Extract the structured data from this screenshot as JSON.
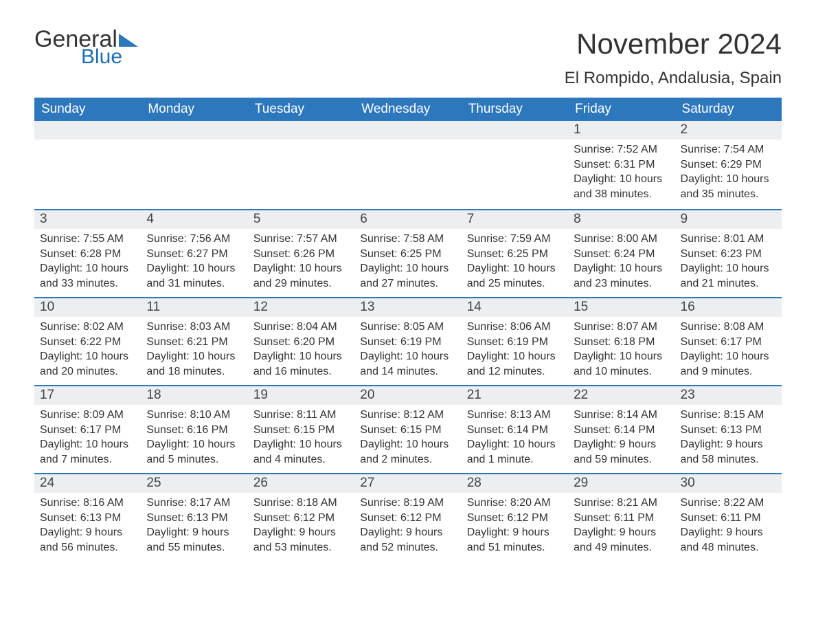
{
  "logo": {
    "line1": "General",
    "line2": "Blue"
  },
  "title": "November 2024",
  "location": "El Rompido, Andalusia, Spain",
  "colors": {
    "header_bg": "#2d77bd",
    "header_text": "#ffffff",
    "daynum_bg": "#eceef0",
    "border": "#2d77bd",
    "text": "#333333",
    "logo_blue": "#1a6fb5"
  },
  "daysOfWeek": [
    "Sunday",
    "Monday",
    "Tuesday",
    "Wednesday",
    "Thursday",
    "Friday",
    "Saturday"
  ],
  "weeks": [
    [
      null,
      null,
      null,
      null,
      null,
      {
        "n": "1",
        "sunrise": "7:52 AM",
        "sunset": "6:31 PM",
        "daylight": "10 hours and 38 minutes."
      },
      {
        "n": "2",
        "sunrise": "7:54 AM",
        "sunset": "6:29 PM",
        "daylight": "10 hours and 35 minutes."
      }
    ],
    [
      {
        "n": "3",
        "sunrise": "7:55 AM",
        "sunset": "6:28 PM",
        "daylight": "10 hours and 33 minutes."
      },
      {
        "n": "4",
        "sunrise": "7:56 AM",
        "sunset": "6:27 PM",
        "daylight": "10 hours and 31 minutes."
      },
      {
        "n": "5",
        "sunrise": "7:57 AM",
        "sunset": "6:26 PM",
        "daylight": "10 hours and 29 minutes."
      },
      {
        "n": "6",
        "sunrise": "7:58 AM",
        "sunset": "6:25 PM",
        "daylight": "10 hours and 27 minutes."
      },
      {
        "n": "7",
        "sunrise": "7:59 AM",
        "sunset": "6:25 PM",
        "daylight": "10 hours and 25 minutes."
      },
      {
        "n": "8",
        "sunrise": "8:00 AM",
        "sunset": "6:24 PM",
        "daylight": "10 hours and 23 minutes."
      },
      {
        "n": "9",
        "sunrise": "8:01 AM",
        "sunset": "6:23 PM",
        "daylight": "10 hours and 21 minutes."
      }
    ],
    [
      {
        "n": "10",
        "sunrise": "8:02 AM",
        "sunset": "6:22 PM",
        "daylight": "10 hours and 20 minutes."
      },
      {
        "n": "11",
        "sunrise": "8:03 AM",
        "sunset": "6:21 PM",
        "daylight": "10 hours and 18 minutes."
      },
      {
        "n": "12",
        "sunrise": "8:04 AM",
        "sunset": "6:20 PM",
        "daylight": "10 hours and 16 minutes."
      },
      {
        "n": "13",
        "sunrise": "8:05 AM",
        "sunset": "6:19 PM",
        "daylight": "10 hours and 14 minutes."
      },
      {
        "n": "14",
        "sunrise": "8:06 AM",
        "sunset": "6:19 PM",
        "daylight": "10 hours and 12 minutes."
      },
      {
        "n": "15",
        "sunrise": "8:07 AM",
        "sunset": "6:18 PM",
        "daylight": "10 hours and 10 minutes."
      },
      {
        "n": "16",
        "sunrise": "8:08 AM",
        "sunset": "6:17 PM",
        "daylight": "10 hours and 9 minutes."
      }
    ],
    [
      {
        "n": "17",
        "sunrise": "8:09 AM",
        "sunset": "6:17 PM",
        "daylight": "10 hours and 7 minutes."
      },
      {
        "n": "18",
        "sunrise": "8:10 AM",
        "sunset": "6:16 PM",
        "daylight": "10 hours and 5 minutes."
      },
      {
        "n": "19",
        "sunrise": "8:11 AM",
        "sunset": "6:15 PM",
        "daylight": "10 hours and 4 minutes."
      },
      {
        "n": "20",
        "sunrise": "8:12 AM",
        "sunset": "6:15 PM",
        "daylight": "10 hours and 2 minutes."
      },
      {
        "n": "21",
        "sunrise": "8:13 AM",
        "sunset": "6:14 PM",
        "daylight": "10 hours and 1 minute."
      },
      {
        "n": "22",
        "sunrise": "8:14 AM",
        "sunset": "6:14 PM",
        "daylight": "9 hours and 59 minutes."
      },
      {
        "n": "23",
        "sunrise": "8:15 AM",
        "sunset": "6:13 PM",
        "daylight": "9 hours and 58 minutes."
      }
    ],
    [
      {
        "n": "24",
        "sunrise": "8:16 AM",
        "sunset": "6:13 PM",
        "daylight": "9 hours and 56 minutes."
      },
      {
        "n": "25",
        "sunrise": "8:17 AM",
        "sunset": "6:13 PM",
        "daylight": "9 hours and 55 minutes."
      },
      {
        "n": "26",
        "sunrise": "8:18 AM",
        "sunset": "6:12 PM",
        "daylight": "9 hours and 53 minutes."
      },
      {
        "n": "27",
        "sunrise": "8:19 AM",
        "sunset": "6:12 PM",
        "daylight": "9 hours and 52 minutes."
      },
      {
        "n": "28",
        "sunrise": "8:20 AM",
        "sunset": "6:12 PM",
        "daylight": "9 hours and 51 minutes."
      },
      {
        "n": "29",
        "sunrise": "8:21 AM",
        "sunset": "6:11 PM",
        "daylight": "9 hours and 49 minutes."
      },
      {
        "n": "30",
        "sunrise": "8:22 AM",
        "sunset": "6:11 PM",
        "daylight": "9 hours and 48 minutes."
      }
    ]
  ],
  "labels": {
    "sunrise": "Sunrise: ",
    "sunset": "Sunset: ",
    "daylight": "Daylight: "
  }
}
